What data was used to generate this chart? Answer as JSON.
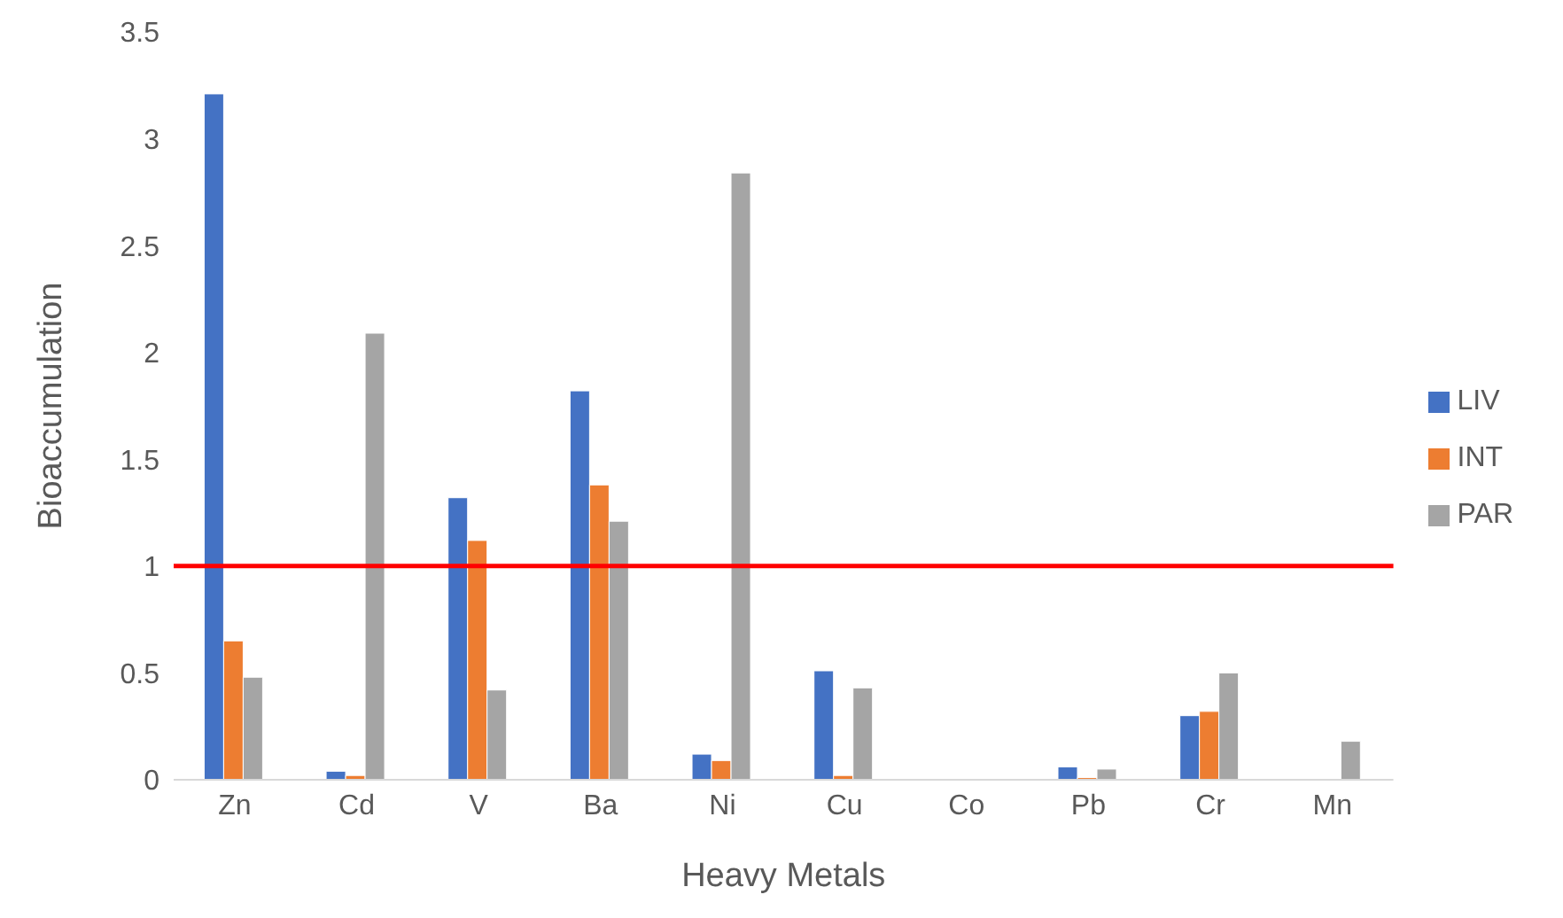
{
  "chart_data": {
    "type": "bar",
    "xlabel": "Heavy Metals",
    "ylabel": "Bioaccumulation",
    "categories": [
      "Zn",
      "Cd",
      "V",
      "Ba",
      "Ni",
      "Cu",
      "Co",
      "Pb",
      "Cr",
      "Mn"
    ],
    "series": [
      {
        "name": "LIV",
        "color": "#4472c4",
        "values": [
          3.21,
          0.04,
          1.32,
          1.82,
          0.12,
          0.51,
          0,
          0.06,
          0.3,
          0
        ]
      },
      {
        "name": "INT",
        "color": "#ed7d31",
        "values": [
          0.65,
          0.02,
          1.12,
          1.38,
          0.09,
          0.02,
          0,
          0.01,
          0.32,
          0
        ]
      },
      {
        "name": "PAR",
        "color": "#a5a5a5",
        "values": [
          0.48,
          2.09,
          0.42,
          1.21,
          2.84,
          0.43,
          0,
          0.05,
          0.5,
          0.18
        ]
      }
    ],
    "ylim": [
      0,
      3.5
    ],
    "yticks": [
      0,
      0.5,
      1,
      1.5,
      2,
      2.5,
      3,
      3.5
    ],
    "grid": false,
    "legend": "right",
    "ref_lines": [
      {
        "axis": "y",
        "value": 1,
        "color": "#ff0000"
      }
    ]
  }
}
